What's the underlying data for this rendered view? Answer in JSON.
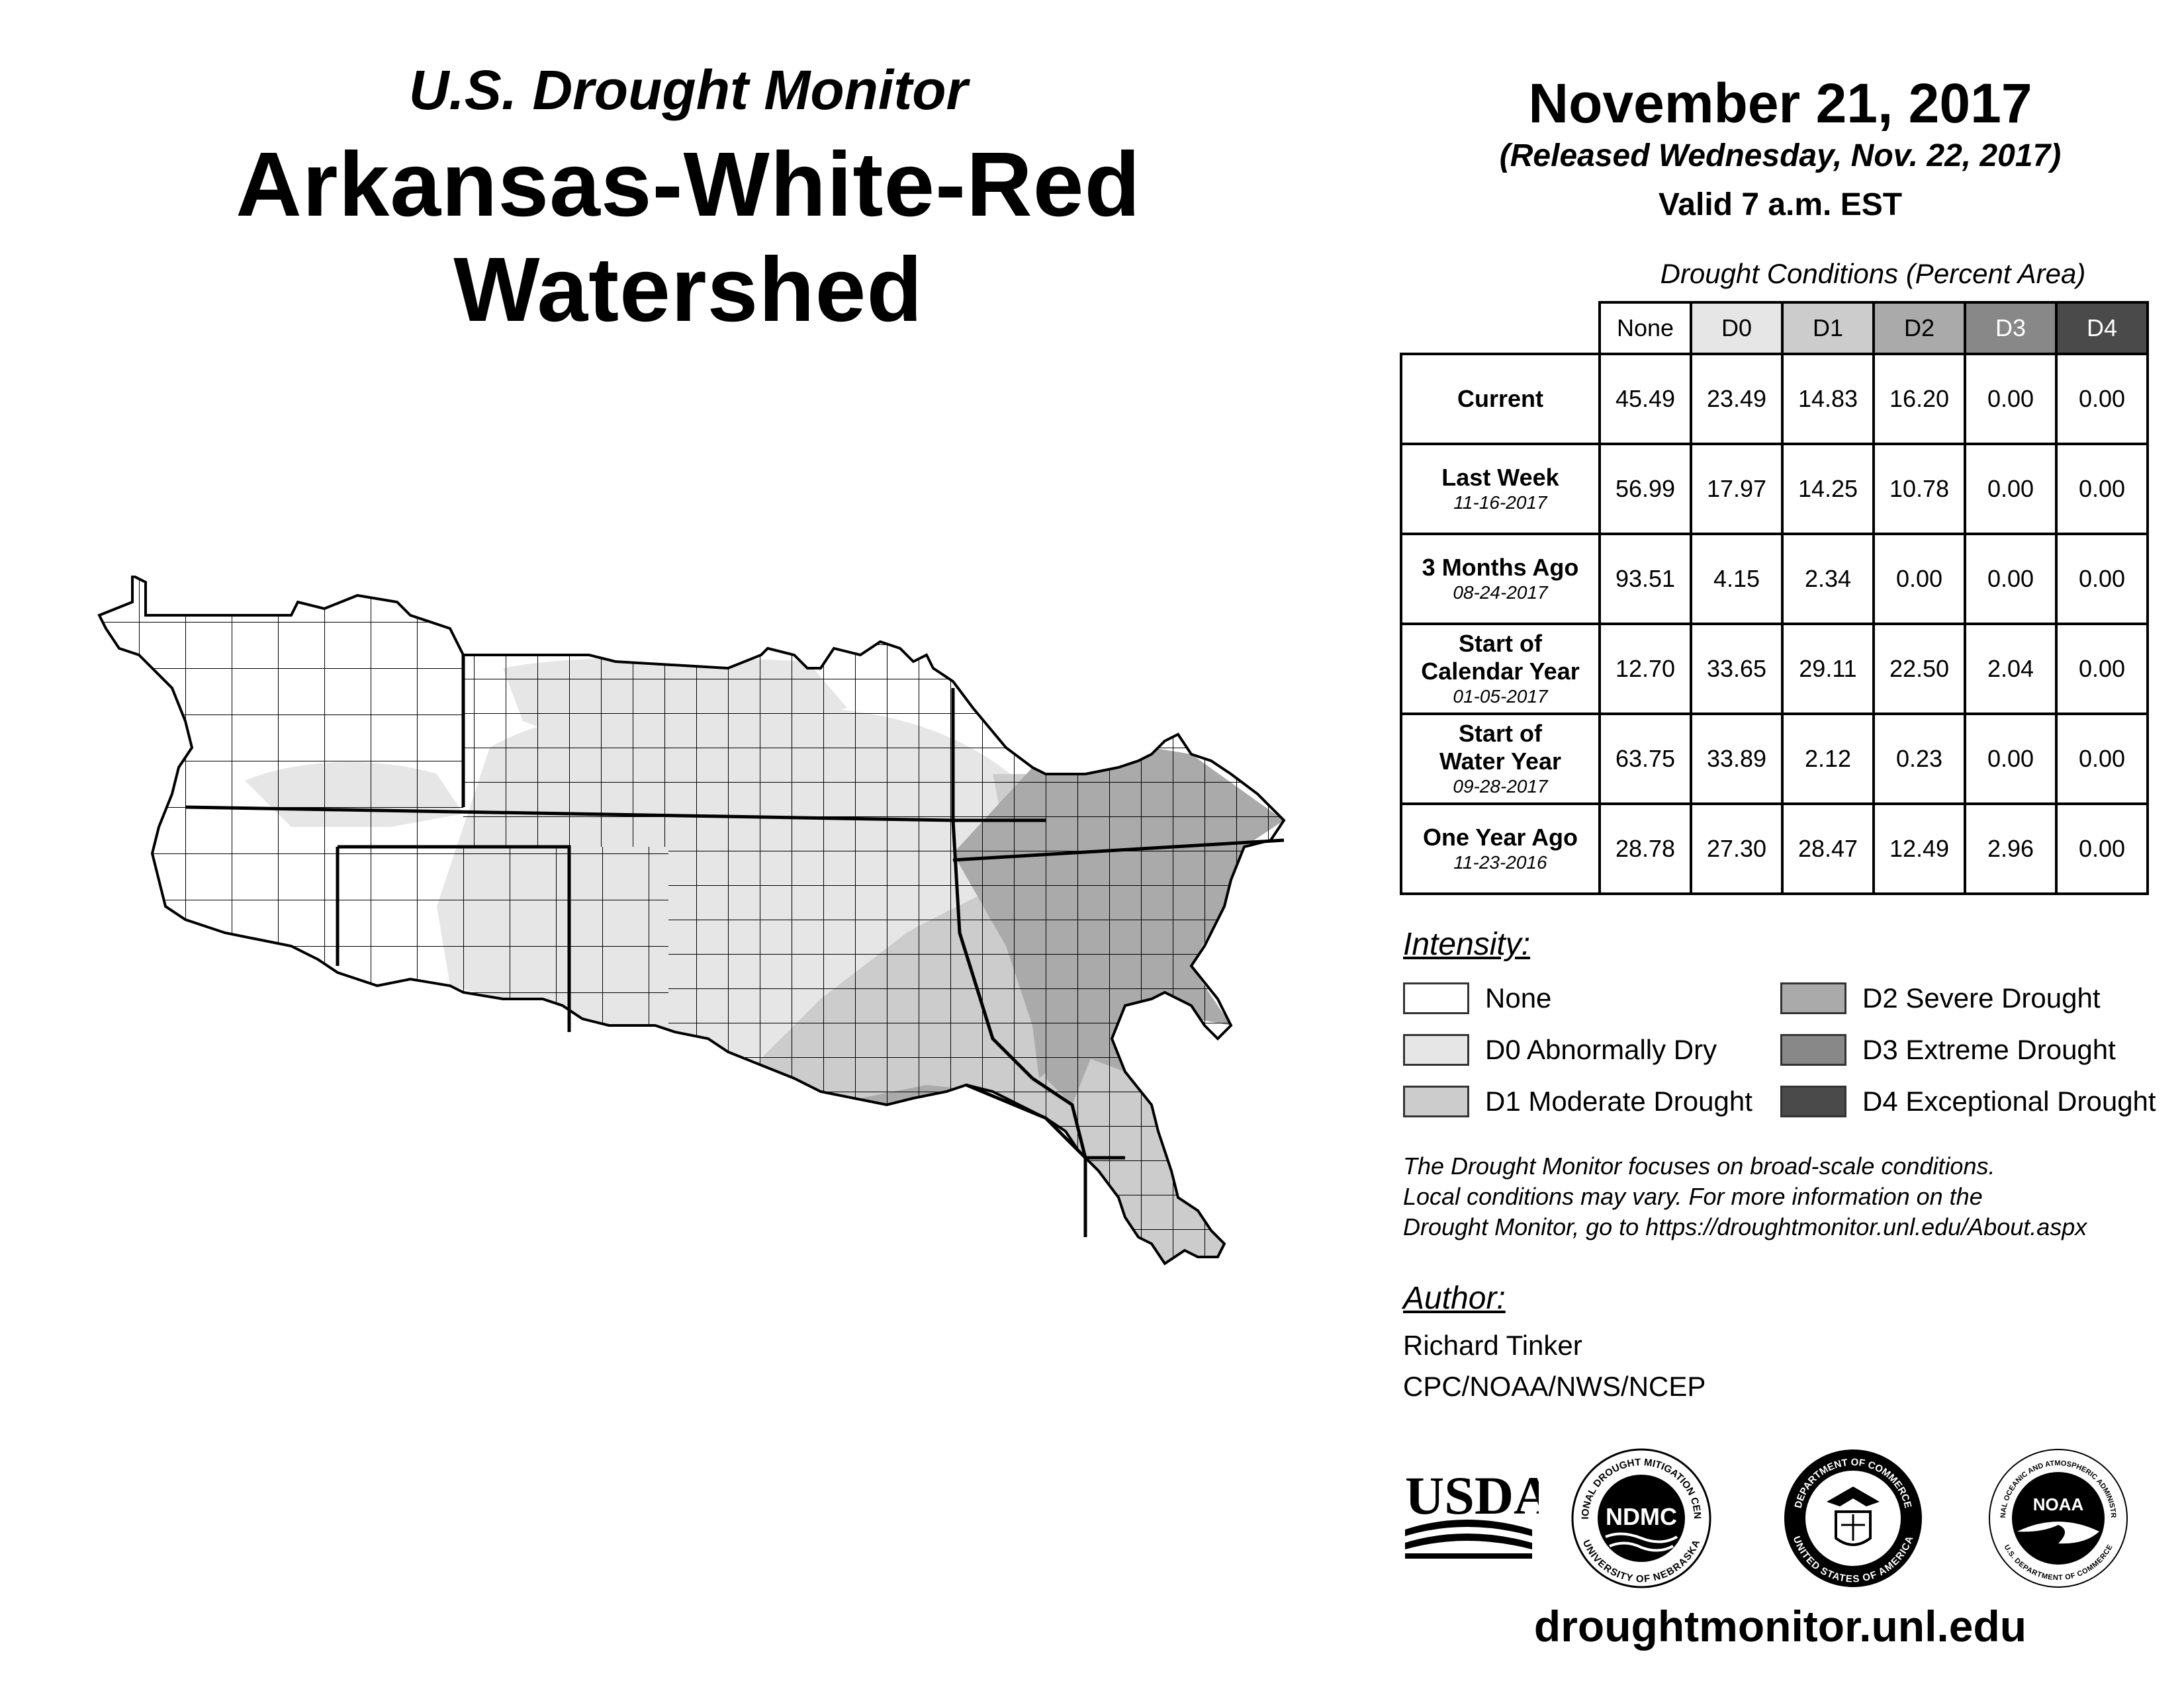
{
  "header": {
    "subtitle": "U.S. Drought Monitor",
    "title": "Arkansas-White-Red Watershed",
    "date": "November 21, 2017",
    "released": "(Released Wednesday, Nov. 22, 2017)",
    "valid": "Valid 7 a.m. EST"
  },
  "table": {
    "caption": "Drought Conditions (Percent Area)",
    "columns": [
      "None",
      "D0",
      "D1",
      "D2",
      "D3",
      "D4"
    ],
    "rows": [
      {
        "label": "Current",
        "label2": "",
        "date": "",
        "values": [
          "45.49",
          "23.49",
          "14.83",
          "16.20",
          "0.00",
          "0.00"
        ]
      },
      {
        "label": "Last Week",
        "label2": "",
        "date": "11-16-2017",
        "values": [
          "56.99",
          "17.97",
          "14.25",
          "10.78",
          "0.00",
          "0.00"
        ]
      },
      {
        "label": "3 Months Ago",
        "label2": "",
        "date": "08-24-2017",
        "values": [
          "93.51",
          "4.15",
          "2.34",
          "0.00",
          "0.00",
          "0.00"
        ]
      },
      {
        "label": "Start of",
        "label2": "Calendar Year",
        "date": "01-05-2017",
        "values": [
          "12.70",
          "33.65",
          "29.11",
          "22.50",
          "2.04",
          "0.00"
        ]
      },
      {
        "label": "Start of",
        "label2": "Water Year",
        "date": "09-28-2017",
        "values": [
          "63.75",
          "33.89",
          "2.12",
          "0.23",
          "0.00",
          "0.00"
        ]
      },
      {
        "label": "One Year Ago",
        "label2": "",
        "date": "11-23-2016",
        "values": [
          "28.78",
          "27.30",
          "28.47",
          "12.49",
          "2.96",
          "0.00"
        ]
      }
    ]
  },
  "legend": {
    "title": "Intensity:",
    "items": [
      {
        "label": "None",
        "color": "#ffffff"
      },
      {
        "label": "D0 Abnormally Dry",
        "color": "#e6e6e6"
      },
      {
        "label": "D1 Moderate Drought",
        "color": "#cccccc"
      },
      {
        "label": "D2 Severe Drought",
        "color": "#aaaaaa"
      },
      {
        "label": "D3 Extreme Drought",
        "color": "#888888"
      },
      {
        "label": "D4 Exceptional Drought",
        "color": "#4a4a4a"
      }
    ]
  },
  "note": {
    "line1": "The Drought Monitor focuses on broad-scale conditions.",
    "line2": "Local conditions may vary. For more information on the",
    "line3": "Drought Monitor, go to https://droughtmonitor.unl.edu/About.aspx"
  },
  "author": {
    "title": "Author:",
    "name": "Richard Tinker",
    "org": "CPC/NOAA/NWS/NCEP"
  },
  "logos": {
    "usda": "USDA",
    "ndmc": "NDMC",
    "ndmc_ring_top": "NATIONAL DROUGHT MITIGATION CENTER",
    "ndmc_ring_bottom": "UNIVERSITY OF NEBRASKA",
    "doc_ring_top": "DEPARTMENT OF COMMERCE",
    "doc_ring_bottom": "UNITED STATES OF AMERICA",
    "noaa": "NOAA",
    "noaa_ring_top": "NATIONAL OCEANIC AND ATMOSPHERIC ADMINISTRATION",
    "noaa_ring_bottom": "U.S. DEPARTMENT OF COMMERCE"
  },
  "website": "droughtmonitor.unl.edu"
}
